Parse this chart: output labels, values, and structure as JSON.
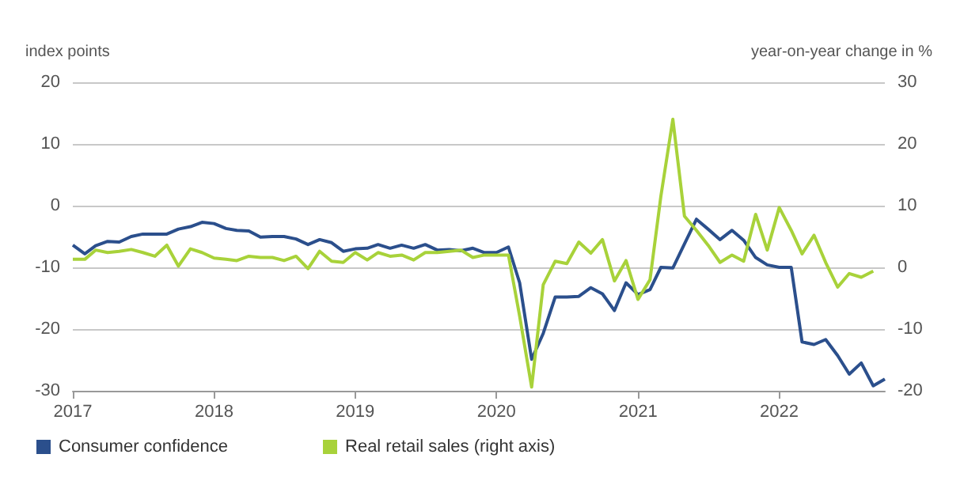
{
  "chart_data": {
    "type": "line",
    "ylabel": "index points",
    "y2label": "year-on-year change in %",
    "x": [
      "2017-01",
      "2017-02",
      "2017-03",
      "2017-04",
      "2017-05",
      "2017-06",
      "2017-07",
      "2017-08",
      "2017-09",
      "2017-10",
      "2017-11",
      "2017-12",
      "2018-01",
      "2018-02",
      "2018-03",
      "2018-04",
      "2018-05",
      "2018-06",
      "2018-07",
      "2018-08",
      "2018-09",
      "2018-10",
      "2018-11",
      "2018-12",
      "2019-01",
      "2019-02",
      "2019-03",
      "2019-04",
      "2019-05",
      "2019-06",
      "2019-07",
      "2019-08",
      "2019-09",
      "2019-10",
      "2019-11",
      "2019-12",
      "2020-01",
      "2020-02",
      "2020-03",
      "2020-04",
      "2020-05",
      "2020-06",
      "2020-07",
      "2020-08",
      "2020-09",
      "2020-10",
      "2020-11",
      "2020-12",
      "2021-01",
      "2021-02",
      "2021-03",
      "2021-04",
      "2021-05",
      "2021-06",
      "2021-07",
      "2021-08",
      "2021-09",
      "2021-10",
      "2021-11",
      "2021-12",
      "2022-01",
      "2022-02",
      "2022-03",
      "2022-04",
      "2022-05",
      "2022-06",
      "2022-07",
      "2022-08",
      "2022-09",
      "2022-10"
    ],
    "series": [
      {
        "name": "Consumer confidence",
        "color": "#2b4f8c",
        "values": [
          -6.4,
          -7.8,
          -6.5,
          -5.8,
          -5.9,
          -5.0,
          -4.6,
          -4.6,
          -4.6,
          -3.8,
          -3.4,
          -2.7,
          -2.9,
          -3.7,
          -4.0,
          -4.1,
          -5.1,
          -5.0,
          -5.0,
          -5.4,
          -6.3,
          -5.5,
          -6.0,
          -7.4,
          -7.0,
          -6.9,
          -6.3,
          -6.9,
          -6.4,
          -6.9,
          -6.3,
          -7.2,
          -7.1,
          -7.3,
          -6.9,
          -7.6,
          -7.6,
          -6.7,
          -12.5,
          -24.9,
          -20.7,
          -14.8,
          -14.8,
          -14.7,
          -13.3,
          -14.3,
          -17.0,
          -12.5,
          -14.4,
          -13.6,
          -10.0,
          -10.1,
          -6.2,
          -2.2,
          -3.8,
          -5.5,
          -4.0,
          -5.6,
          -8.4,
          -9.6,
          -10.0,
          -10.0,
          -22.1,
          -22.5,
          -21.7,
          -24.3,
          -27.3,
          -25.5,
          -29.2,
          -28.1
        ]
      },
      {
        "name": "Real retail sales (right axis)",
        "color": "#a8d23a",
        "axis": "y2",
        "values": [
          1.3,
          1.3,
          2.8,
          2.4,
          2.6,
          2.9,
          2.4,
          1.8,
          3.6,
          0.2,
          3.0,
          2.4,
          1.5,
          1.3,
          1.1,
          1.8,
          1.6,
          1.6,
          1.1,
          1.8,
          -0.2,
          2.6,
          1.0,
          0.8,
          2.4,
          1.2,
          2.4,
          1.8,
          2.0,
          1.2,
          2.4,
          2.4,
          2.6,
          2.8,
          1.6,
          2.0,
          2.0,
          2.0,
          -7.9,
          -19.4,
          -2.8,
          1.0,
          0.6,
          4.1,
          2.3,
          4.5,
          -2.2,
          1.1,
          -5.2,
          -2.0,
          11.5,
          24.0,
          8.3,
          6.0,
          3.6,
          0.8,
          2.0,
          1.0,
          8.6,
          2.8,
          9.7,
          6.0,
          2.2,
          5.2,
          0.8,
          -3.2,
          -1.0,
          -1.6,
          -0.6,
          null
        ]
      }
    ],
    "xlim": [
      "2017-01",
      "2022-10"
    ],
    "xticks": [
      "2017",
      "2018",
      "2019",
      "2020",
      "2021",
      "2022"
    ],
    "ylim": [
      -30,
      20
    ],
    "yticks": [
      -30,
      -20,
      -10,
      0,
      10,
      20
    ],
    "y2lim": [
      -20,
      30
    ],
    "y2ticks": [
      -20,
      -10,
      0,
      10,
      20,
      30
    ],
    "grid": "y",
    "legend": "bottom left",
    "marker": "none",
    "line_style": "solid"
  }
}
